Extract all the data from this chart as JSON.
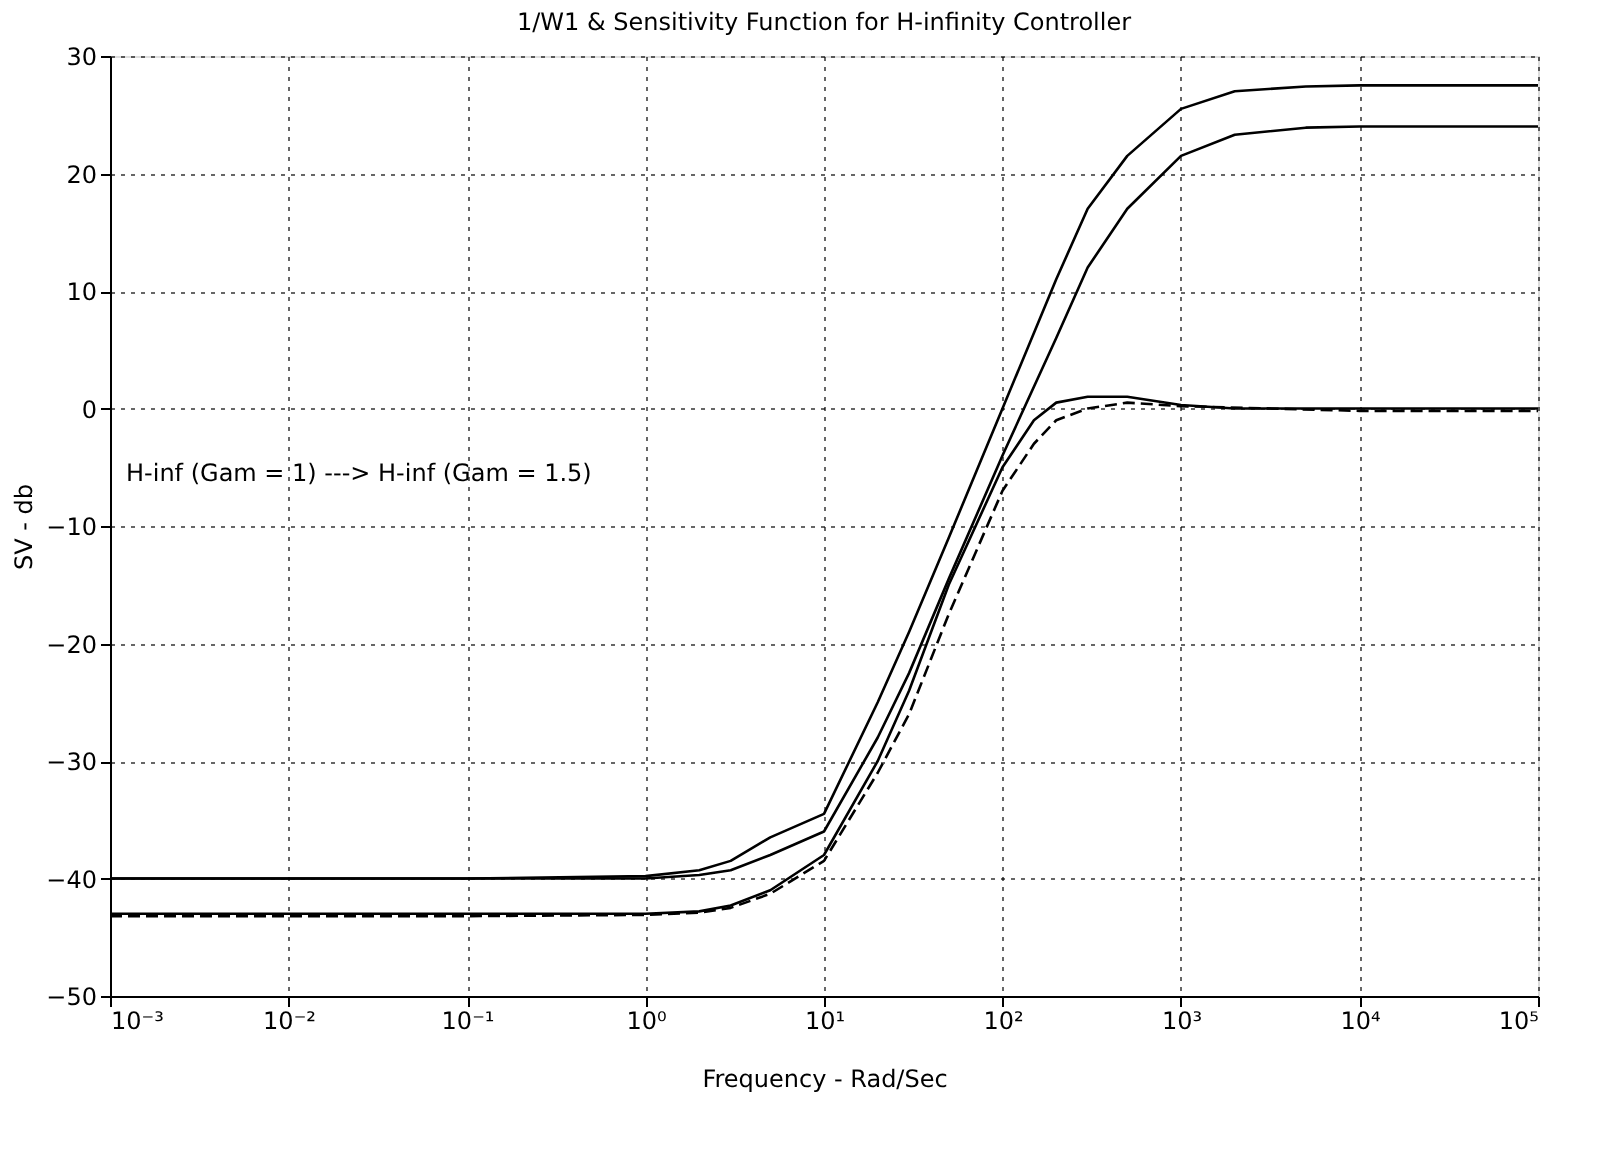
{
  "chart_data": {
    "type": "line",
    "title": "1/W1 & Sensitivity Function for H-infinity Controller",
    "xlabel": "Frequency - Rad/Sec",
    "ylabel": "SV - db",
    "log": "x",
    "grid": true,
    "marker": "none",
    "xlim": [
      0.001,
      100000
    ],
    "ylim": [
      -50,
      30
    ],
    "xticks": [
      {
        "value": 0.001,
        "label": "10⁻³"
      },
      {
        "value": 0.01,
        "label": "10⁻²"
      },
      {
        "value": 0.1,
        "label": "10⁻¹"
      },
      {
        "value": 1,
        "label": "10⁰"
      },
      {
        "value": 10,
        "label": "10¹"
      },
      {
        "value": 100,
        "label": "10²"
      },
      {
        "value": 1000,
        "label": "10³"
      },
      {
        "value": 10000,
        "label": "10⁴"
      },
      {
        "value": 100000,
        "label": "10⁵"
      }
    ],
    "yticks": [
      -50,
      -40,
      -30,
      -20,
      -10,
      0,
      10,
      20,
      30
    ],
    "annotations": [
      "H-inf (Gam = 1) ---> H-inf (Gam = 1.5)"
    ],
    "series": [
      {
        "color": "#000000",
        "line_style": "solid",
        "x": [
          0.001,
          0.01,
          0.1,
          1,
          2,
          3,
          5,
          10,
          20,
          30,
          50,
          100,
          200,
          300,
          500,
          1000,
          2000,
          5000,
          10000,
          100000
        ],
        "values": [
          -40,
          -40,
          -40,
          -39.8,
          -39.3,
          -38.5,
          -36.5,
          -34.5,
          -25,
          -19,
          -11,
          0,
          11,
          17,
          21.5,
          25.5,
          27,
          27.4,
          27.5,
          27.5
        ]
      },
      {
        "color": "#000000",
        "line_style": "solid",
        "x": [
          0.001,
          0.01,
          0.1,
          1,
          2,
          3,
          5,
          10,
          20,
          30,
          50,
          100,
          200,
          300,
          500,
          1000,
          2000,
          5000,
          10000,
          100000
        ],
        "values": [
          -40,
          -40,
          -40,
          -40,
          -39.7,
          -39.3,
          -38,
          -36,
          -28,
          -22.5,
          -14.5,
          -4,
          6,
          12,
          17,
          21.5,
          23.3,
          23.9,
          24,
          24
        ]
      },
      {
        "color": "#000000",
        "line_style": "solid",
        "x": [
          0.001,
          0.01,
          0.1,
          1,
          2,
          3,
          5,
          10,
          20,
          30,
          50,
          100,
          150,
          200,
          300,
          500,
          1000,
          2000,
          10000,
          100000
        ],
        "values": [
          -43,
          -43,
          -43,
          -43,
          -42.8,
          -42.3,
          -41,
          -38,
          -30,
          -24,
          -15,
          -5,
          -1,
          0.5,
          1,
          1,
          0.3,
          0,
          0,
          0
        ]
      },
      {
        "color": "#000000",
        "line_style": "dashed",
        "x": [
          0.001,
          0.01,
          0.1,
          1,
          2,
          3,
          5,
          10,
          20,
          30,
          50,
          100,
          150,
          200,
          300,
          500,
          1000,
          10000,
          100000
        ],
        "values": [
          -43.2,
          -43.2,
          -43.2,
          -43.1,
          -42.9,
          -42.5,
          -41.3,
          -38.5,
          -31,
          -26,
          -17.5,
          -7,
          -3,
          -1,
          0,
          0.5,
          0.2,
          -0.2,
          -0.2
        ]
      }
    ]
  }
}
